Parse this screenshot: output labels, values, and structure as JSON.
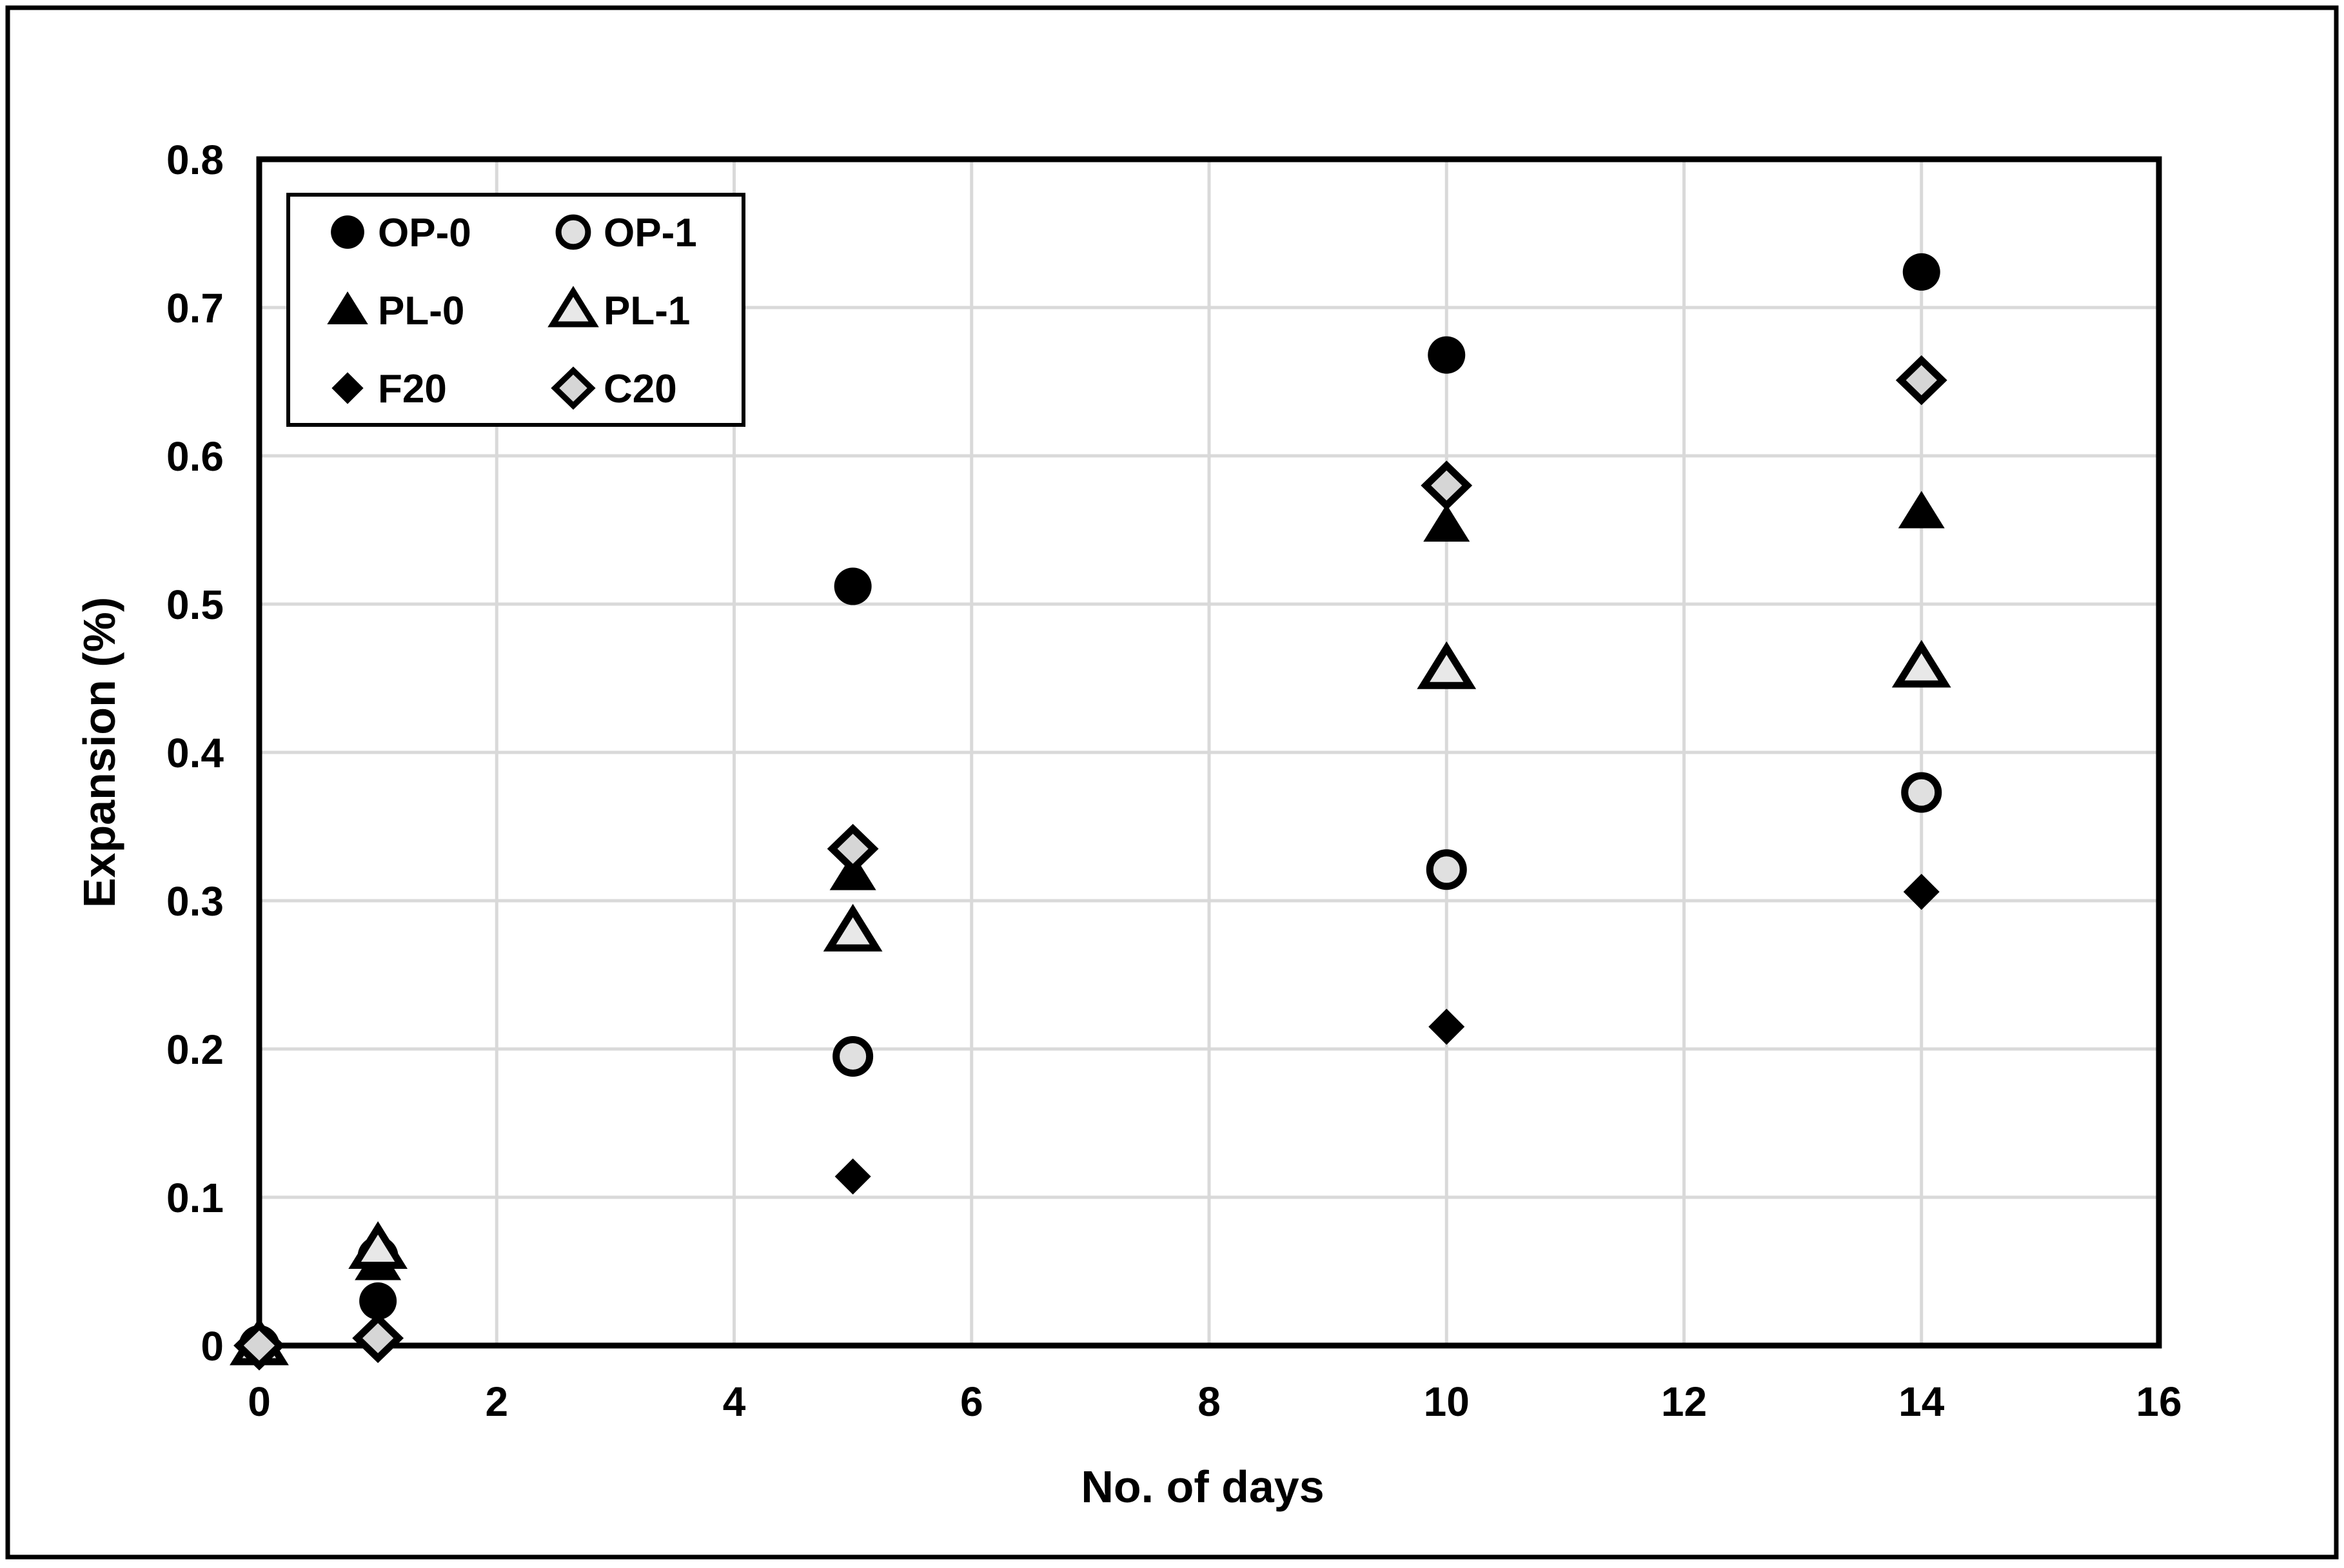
{
  "figure": {
    "background": "#ffffff",
    "frame_color": "#000000",
    "plot_border_color": "#000000"
  },
  "chart_data": {
    "type": "scatter",
    "title": "",
    "xlabel": "No. of days",
    "ylabel": "Expansion (%)",
    "xlim": [
      0,
      16
    ],
    "ylim": [
      0,
      0.8
    ],
    "x_ticks": [
      "0",
      "2",
      "4",
      "6",
      "8",
      "10",
      "12",
      "14",
      "16"
    ],
    "x_tick_values": [
      0,
      2,
      4,
      6,
      8,
      10,
      12,
      14,
      16
    ],
    "y_ticks": [
      "0",
      "0.1",
      "0.2",
      "0.3",
      "0.4",
      "0.5",
      "0.6",
      "0.7",
      "0.8"
    ],
    "y_tick_values": [
      0,
      0.1,
      0.2,
      0.3,
      0.4,
      0.5,
      0.6,
      0.7,
      0.8
    ],
    "grid": true,
    "gridline_color": "#d9d9d9",
    "legend_position": "top-left-inside",
    "x": [
      0,
      1,
      5,
      10,
      14
    ],
    "series": [
      {
        "name": "OP-0",
        "marker": "circle",
        "fill": "#000000",
        "outline": false,
        "values": [
          0,
          0.03,
          0.512,
          0.668,
          0.724
        ]
      },
      {
        "name": "OP-1",
        "marker": "circle",
        "fill": "#e0e0e0",
        "outline": true,
        "values": [
          0,
          0.06,
          0.195,
          0.321,
          0.373
        ]
      },
      {
        "name": "PL-0",
        "marker": "triangle",
        "fill": "#000000",
        "outline": false,
        "values": [
          0,
          0.055,
          0.318,
          0.553,
          0.562
        ]
      },
      {
        "name": "PL-1",
        "marker": "triangle",
        "fill": "#e8e8e8",
        "outline": true,
        "values": [
          0,
          0.065,
          0.279,
          0.456,
          0.457
        ]
      },
      {
        "name": "F20",
        "marker": "diamond",
        "fill": "#000000",
        "outline": false,
        "values": [
          0,
          0.002,
          0.114,
          0.215,
          0.306
        ]
      },
      {
        "name": "C20",
        "marker": "diamond",
        "fill": "#d6d6d6",
        "outline": true,
        "values": [
          0,
          0.005,
          0.335,
          0.58,
          0.651
        ]
      }
    ],
    "legend_order": [
      "OP-0",
      "OP-1",
      "PL-0",
      "PL-1",
      "F20",
      "C20"
    ]
  }
}
